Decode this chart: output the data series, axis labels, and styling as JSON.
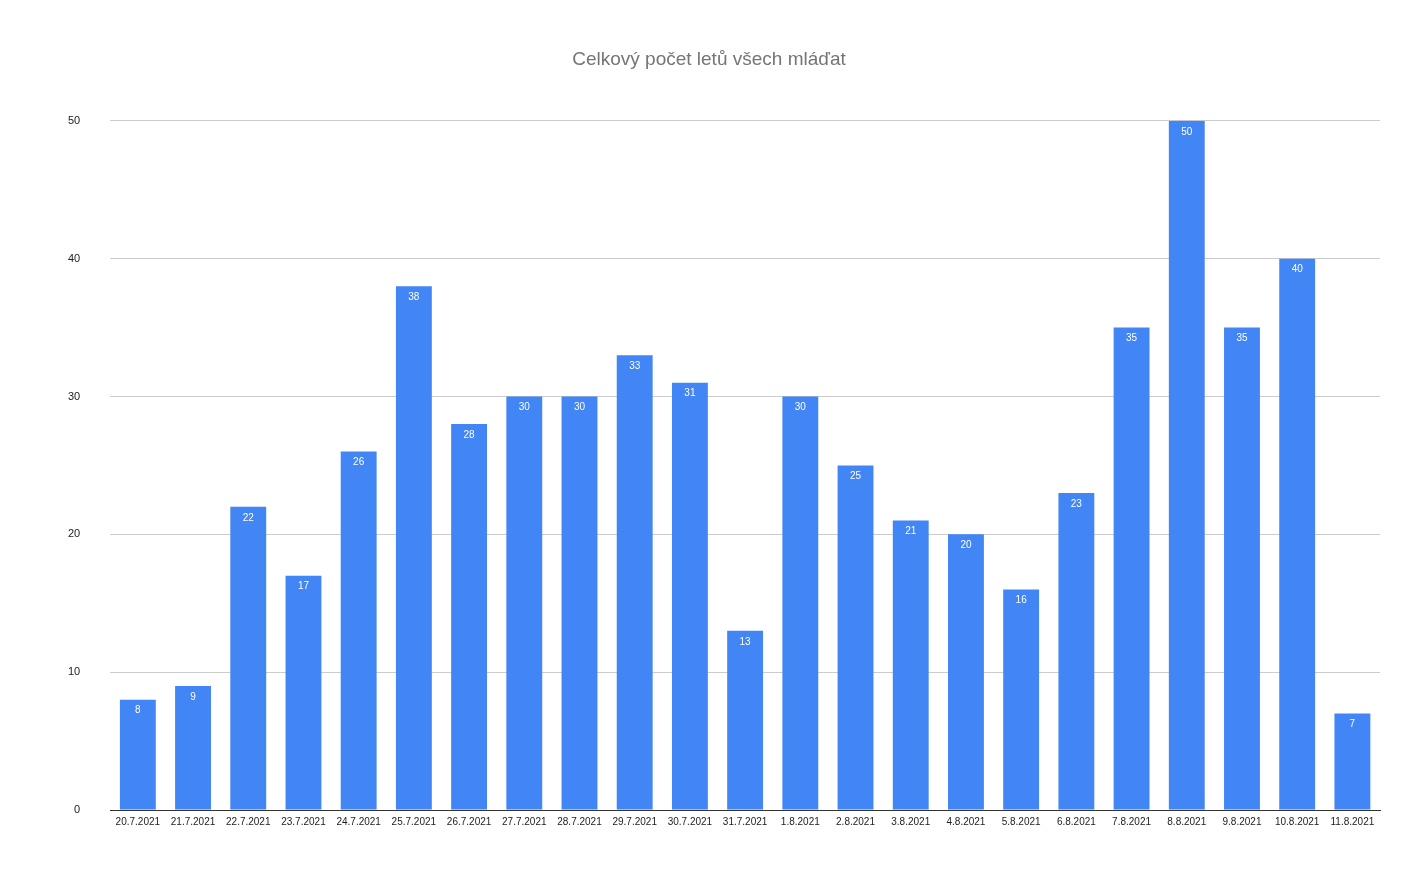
{
  "chart_data": {
    "type": "bar",
    "title": "Celkový počet letů všech mláďat",
    "categories": [
      "20.7.2021",
      "21.7.2021",
      "22.7.2021",
      "23.7.2021",
      "24.7.2021",
      "25.7.2021",
      "26.7.2021",
      "27.7.2021",
      "28.7.2021",
      "29.7.2021",
      "30.7.2021",
      "31.7.2021",
      "1.8.2021",
      "2.8.2021",
      "3.8.2021",
      "4.8.2021",
      "5.8.2021",
      "6.8.2021",
      "7.8.2021",
      "8.8.2021",
      "9.8.2021",
      "10.8.2021",
      "11.8.2021"
    ],
    "values": [
      8,
      9,
      22,
      17,
      26,
      38,
      28,
      30,
      30,
      33,
      31,
      13,
      30,
      25,
      21,
      20,
      16,
      23,
      35,
      50,
      35,
      40,
      7
    ],
    "color": "#4285f4",
    "ylim": [
      0,
      50
    ],
    "yticks": [
      0,
      10,
      20,
      30,
      40,
      50
    ],
    "grid": "y",
    "legend": false,
    "data_labels": true
  }
}
